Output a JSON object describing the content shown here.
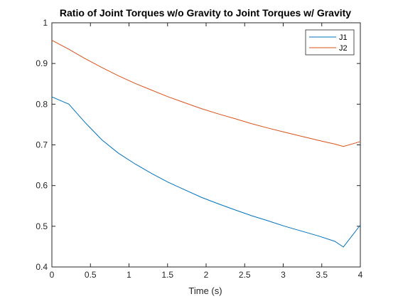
{
  "chart_data": {
    "type": "line",
    "title": "Ratio of Joint Torques w/o Gravity to Joint Torques w/ Gravity",
    "xlabel": "Time (s)",
    "ylabel": "",
    "xlim": [
      0,
      4
    ],
    "ylim": [
      0.4,
      1
    ],
    "xticks": [
      "0",
      "0.5",
      "1",
      "1.5",
      "2",
      "2.5",
      "3",
      "3.5",
      "4"
    ],
    "yticks": [
      "0.4",
      "0.5",
      "0.6",
      "0.7",
      "0.8",
      "0.9",
      "1"
    ],
    "grid": false,
    "legend_position": "top-right",
    "series": [
      {
        "name": "J1",
        "color": "#0072BD",
        "x": [
          0,
          0.22,
          0.43,
          0.65,
          0.86,
          1.08,
          1.3,
          1.51,
          1.73,
          1.94,
          2.16,
          2.38,
          2.59,
          2.81,
          3.02,
          3.24,
          3.46,
          3.67,
          3.78,
          4.0
        ],
        "y": [
          0.818,
          0.8,
          0.755,
          0.712,
          0.68,
          0.653,
          0.629,
          0.608,
          0.589,
          0.571,
          0.555,
          0.54,
          0.526,
          0.513,
          0.5,
          0.488,
          0.476,
          0.463,
          0.449,
          0.503
        ]
      },
      {
        "name": "J2",
        "color": "#D95319",
        "x": [
          0,
          0.22,
          0.43,
          0.65,
          0.86,
          1.08,
          1.3,
          1.51,
          1.73,
          1.94,
          2.16,
          2.38,
          2.59,
          2.81,
          3.02,
          3.24,
          3.46,
          3.67,
          3.78,
          4.0
        ],
        "y": [
          0.957,
          0.935,
          0.912,
          0.89,
          0.87,
          0.851,
          0.834,
          0.818,
          0.803,
          0.789,
          0.776,
          0.764,
          0.752,
          0.741,
          0.731,
          0.721,
          0.711,
          0.702,
          0.696,
          0.708
        ]
      }
    ]
  }
}
